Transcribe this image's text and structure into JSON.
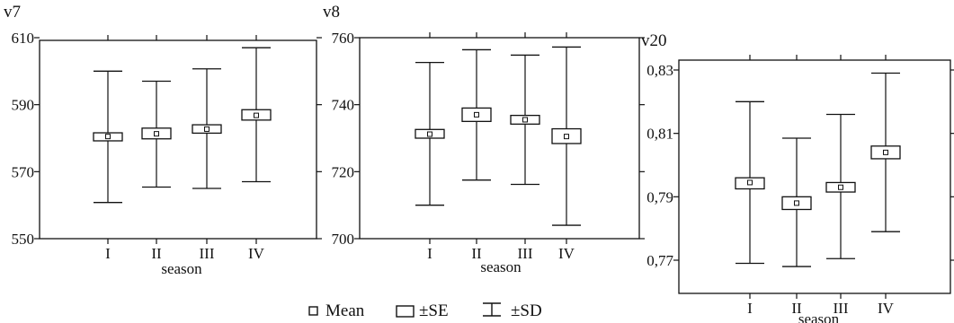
{
  "chart_data": [
    {
      "type": "box",
      "title": "v7",
      "xlabel": "season",
      "categories": [
        "I",
        "II",
        "III",
        "IV"
      ],
      "ylim": [
        550,
        610
      ],
      "yticks": [
        "550",
        "570",
        "590",
        "610"
      ],
      "ytick_values": [
        550,
        570,
        590,
        610
      ],
      "series": [
        {
          "category": "I",
          "mean": 580.5,
          "se_low": 579.2,
          "se_high": 581.6,
          "sd_low": 560.8,
          "sd_high": 600.0
        },
        {
          "category": "II",
          "mean": 581.3,
          "se_low": 579.8,
          "se_high": 583.0,
          "sd_low": 565.4,
          "sd_high": 597.0
        },
        {
          "category": "III",
          "mean": 582.7,
          "se_low": 581.5,
          "se_high": 584.0,
          "sd_low": 565.0,
          "sd_high": 600.7
        },
        {
          "category": "IV",
          "mean": 586.8,
          "se_low": 585.4,
          "se_high": 588.5,
          "sd_low": 567.0,
          "sd_high": 607.0
        }
      ]
    },
    {
      "type": "box",
      "title": "v8",
      "xlabel": "season",
      "categories": [
        "I",
        "II",
        "III",
        "IV"
      ],
      "ylim": [
        700,
        760
      ],
      "yticks": [
        "700",
        "720",
        "740",
        "760"
      ],
      "ytick_values": [
        700,
        720,
        740,
        760
      ],
      "series": [
        {
          "category": "I",
          "mean": 731.2,
          "se_low": 730.0,
          "se_high": 732.6,
          "sd_low": 710.0,
          "sd_high": 752.6
        },
        {
          "category": "II",
          "mean": 737.0,
          "se_low": 735.0,
          "se_high": 739.0,
          "sd_low": 717.5,
          "sd_high": 756.4
        },
        {
          "category": "III",
          "mean": 735.5,
          "se_low": 734.2,
          "se_high": 736.8,
          "sd_low": 716.2,
          "sd_high": 754.8
        },
        {
          "category": "IV",
          "mean": 730.5,
          "se_low": 728.4,
          "se_high": 732.8,
          "sd_low": 704.0,
          "sd_high": 757.2
        }
      ]
    },
    {
      "type": "box",
      "title": "v20",
      "xlabel": "season",
      "categories": [
        "I",
        "II",
        "III",
        "IV"
      ],
      "ylim": [
        0.76,
        0.84
      ],
      "yticks": [
        "0,77",
        "0,79",
        "0,81",
        "0,83"
      ],
      "ytick_values": [
        0.77,
        0.79,
        0.81,
        0.83
      ],
      "series": [
        {
          "category": "I",
          "mean": 0.7945,
          "se_low": 0.7925,
          "se_high": 0.796,
          "sd_low": 0.769,
          "sd_high": 0.82
        },
        {
          "category": "II",
          "mean": 0.788,
          "se_low": 0.786,
          "se_high": 0.79,
          "sd_low": 0.768,
          "sd_high": 0.8085
        },
        {
          "category": "III",
          "mean": 0.793,
          "se_low": 0.7915,
          "se_high": 0.7945,
          "sd_low": 0.7705,
          "sd_high": 0.816
        },
        {
          "category": "IV",
          "mean": 0.804,
          "se_low": 0.802,
          "se_high": 0.806,
          "sd_low": 0.779,
          "sd_high": 0.829
        }
      ]
    }
  ],
  "legend": {
    "mean_label": "Mean",
    "se_label": "±SE",
    "sd_label": "±SD",
    "placement": "bottom-center"
  }
}
